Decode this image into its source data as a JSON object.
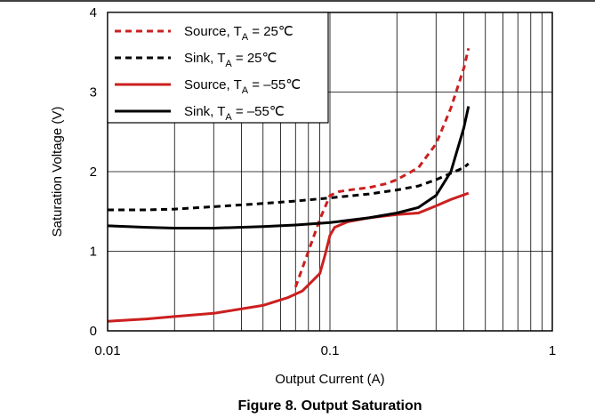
{
  "figure": {
    "caption": "Figure 8. Output Saturation"
  },
  "chart_data": {
    "type": "line",
    "title": "",
    "xlabel": "Output Current (A)",
    "ylabel": "Saturation Voltage (V)",
    "x_scale": "log",
    "xlim": [
      0.01,
      1
    ],
    "ylim": [
      0,
      4
    ],
    "x_ticks": [
      "0.01",
      "0.1",
      "1"
    ],
    "x_tick_values": [
      0.01,
      0.1,
      1
    ],
    "y_ticks": [
      "0",
      "1",
      "2",
      "3",
      "4"
    ],
    "y_tick_values": [
      0,
      1,
      2,
      3,
      4
    ],
    "grid": true,
    "legend_position": "top-left",
    "series": [
      {
        "name": "Source, TA = 25℃",
        "name_main": "Source, T",
        "name_sub": "A",
        "name_tail": " = 25℃",
        "color": "#cc1f1f",
        "dash": true,
        "x": [
          0.07,
          0.08,
          0.09,
          0.1,
          0.11,
          0.13,
          0.15,
          0.18,
          0.2,
          0.25,
          0.3,
          0.35,
          0.4,
          0.42
        ],
        "y": [
          0.55,
          1.0,
          1.4,
          1.7,
          1.75,
          1.78,
          1.8,
          1.85,
          1.9,
          2.05,
          2.35,
          2.8,
          3.3,
          3.55
        ]
      },
      {
        "name": "Sink, TA = 25℃",
        "name_main": "Sink, T",
        "name_sub": "A",
        "name_tail": " = 25℃",
        "color": "#000000",
        "dash": true,
        "x": [
          0.01,
          0.015,
          0.02,
          0.03,
          0.05,
          0.07,
          0.1,
          0.15,
          0.2,
          0.25,
          0.3,
          0.4,
          0.42
        ],
        "y": [
          1.52,
          1.52,
          1.53,
          1.56,
          1.6,
          1.63,
          1.67,
          1.72,
          1.77,
          1.82,
          1.9,
          2.05,
          2.1
        ]
      },
      {
        "name": "Source, TA = –55℃",
        "name_main": "Source, T",
        "name_sub": "A",
        "name_tail": " = –55℃",
        "color": "#cc1f1f",
        "dash": false,
        "x": [
          0.01,
          0.015,
          0.02,
          0.03,
          0.05,
          0.065,
          0.075,
          0.09,
          0.095,
          0.1,
          0.105,
          0.12,
          0.15,
          0.2,
          0.25,
          0.3,
          0.35,
          0.42
        ],
        "y": [
          0.12,
          0.15,
          0.18,
          0.22,
          0.32,
          0.42,
          0.5,
          0.72,
          0.95,
          1.2,
          1.3,
          1.37,
          1.42,
          1.46,
          1.48,
          1.57,
          1.65,
          1.73
        ]
      },
      {
        "name": "Sink, TA = –55℃",
        "name_main": "Sink, T",
        "name_sub": "A",
        "name_tail": " = –55℃",
        "color": "#000000",
        "dash": false,
        "x": [
          0.01,
          0.015,
          0.02,
          0.03,
          0.05,
          0.07,
          0.1,
          0.15,
          0.2,
          0.25,
          0.3,
          0.35,
          0.4,
          0.42
        ],
        "y": [
          1.32,
          1.3,
          1.29,
          1.29,
          1.31,
          1.33,
          1.36,
          1.42,
          1.48,
          1.55,
          1.7,
          2.0,
          2.55,
          2.82
        ]
      }
    ]
  }
}
